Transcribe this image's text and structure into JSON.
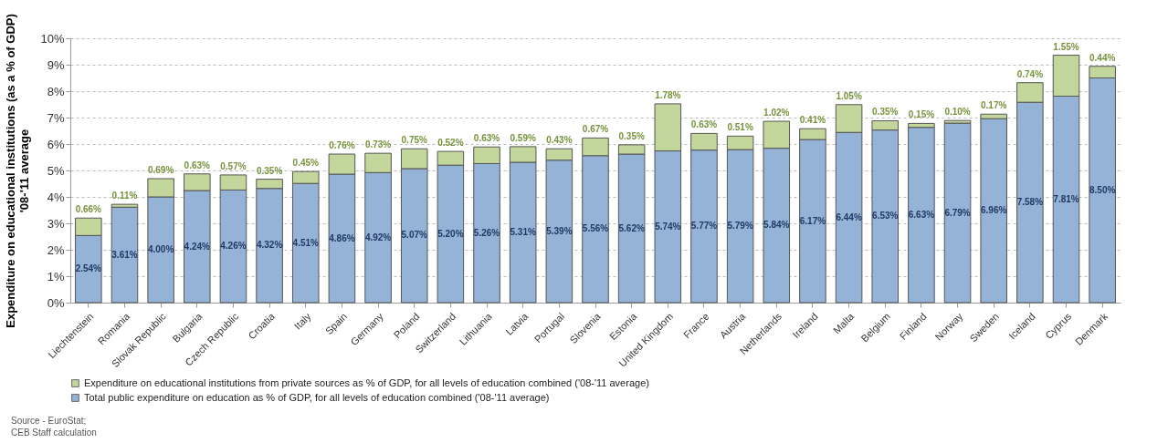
{
  "chart_data": {
    "type": "bar",
    "stacked": true,
    "ylabel": "Expenditure on educational institutions (as a % of GDP)\n'08-'11 average",
    "categories": [
      "Liechtenstein",
      "Romania",
      "Slovak Republic",
      "Bulgaria",
      "Czech Republic",
      "Croatia",
      "Italy",
      "Spain",
      "Germany",
      "Poland",
      "Switzerland",
      "Lithuania",
      "Latvia",
      "Portugal",
      "Slovenia",
      "Estonia",
      "United Kingdom",
      "France",
      "Austria",
      "Netherlands",
      "Ireland",
      "Malta",
      "Belgium",
      "Finland",
      "Norway",
      "Sweden",
      "Iceland",
      "Cyprus",
      "Denmark"
    ],
    "series": [
      {
        "name": "Total public expenditure on education as % of GDP, for all levels of education combined ('08-'11 average)",
        "color": "#95b3d7",
        "values": [
          2.54,
          3.61,
          4.0,
          4.24,
          4.26,
          4.32,
          4.51,
          4.86,
          4.92,
          5.07,
          5.2,
          5.26,
          5.31,
          5.39,
          5.56,
          5.62,
          5.74,
          5.77,
          5.79,
          5.84,
          6.17,
          6.44,
          6.53,
          6.63,
          6.79,
          6.96,
          7.58,
          7.81,
          8.5
        ],
        "value_labels": [
          "2.54%",
          "3.61%",
          "4.00%",
          "4.24%",
          "4.26%",
          "4.32%",
          "4.51%",
          "4.86%",
          "4.92%",
          "5.07%",
          "5.20%",
          "5.26%",
          "5.31%",
          "5.39%",
          "5.56%",
          "5.62%",
          "5.74%",
          "5.77%",
          "5.79%",
          "5.84%",
          "6.17%",
          "6.44%",
          "6.53%",
          "6.63%",
          "6.79%",
          "6.96%",
          "7.58%",
          "7.81%",
          "8.50%"
        ]
      },
      {
        "name": "Expenditure on educational institutions from private sources as % of GDP, for all levels of education combined ('08-'11 average)",
        "color": "#c3d69b",
        "values": [
          0.66,
          0.11,
          0.69,
          0.63,
          0.57,
          0.35,
          0.45,
          0.76,
          0.73,
          0.75,
          0.52,
          0.63,
          0.59,
          0.43,
          0.67,
          0.35,
          1.78,
          0.63,
          0.51,
          1.02,
          0.41,
          1.05,
          0.35,
          0.15,
          0.1,
          0.17,
          0.74,
          1.55,
          0.44
        ],
        "value_labels": [
          "0.66%",
          "0.11%",
          "0.69%",
          "0.63%",
          "0.57%",
          "0.35%",
          "0.45%",
          "0.76%",
          "0.73%",
          "0.75%",
          "0.52%",
          "0.63%",
          "0.59%",
          "0.43%",
          "0.67%",
          "0.35%",
          "1.78%",
          "0.63%",
          "0.51%",
          "1.02%",
          "0.41%",
          "1.05%",
          "0.35%",
          "0.15%",
          "0.10%",
          "0.17%",
          "0.74%",
          "1.55%",
          "0.44%"
        ]
      }
    ],
    "ylim": [
      0,
      10
    ],
    "yticks": [
      {
        "value": 0,
        "label": "0%"
      },
      {
        "value": 1,
        "label": "1%"
      },
      {
        "value": 2,
        "label": "2%"
      },
      {
        "value": 3,
        "label": "3%"
      },
      {
        "value": 4,
        "label": "4%"
      },
      {
        "value": 5,
        "label": "5%"
      },
      {
        "value": 6,
        "label": "6%"
      },
      {
        "value": 7,
        "label": "7%"
      },
      {
        "value": 8,
        "label": "8%"
      },
      {
        "value": 9,
        "label": "9%"
      },
      {
        "value": 10,
        "label": "10%"
      }
    ],
    "grid": "y",
    "legend": "bottom",
    "annotations": [
      "Source - EuroStat;\nCEB Staff calculation"
    ]
  }
}
